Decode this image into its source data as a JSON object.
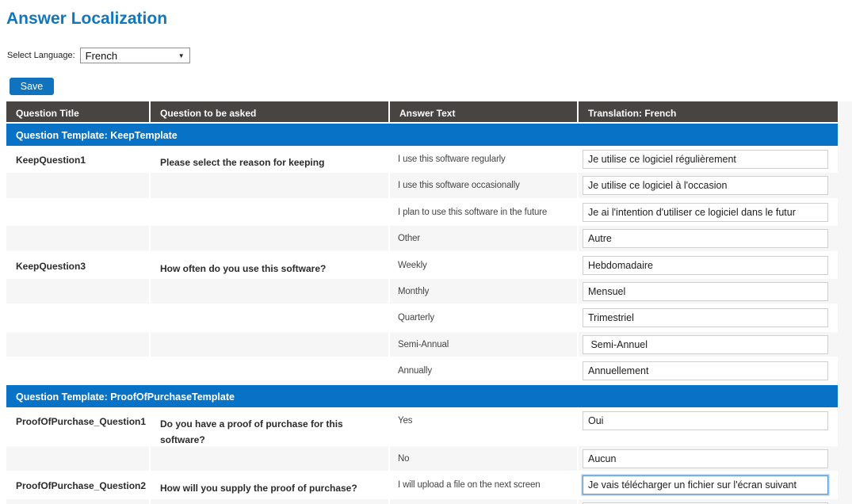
{
  "page": {
    "title": "Answer Localization"
  },
  "language": {
    "label": "Select Language:",
    "selected": "French"
  },
  "save_button": "Save",
  "icons": {
    "chevron_down": "▼"
  },
  "colors": {
    "title_blue": "#1276bd",
    "accent_blue": "#0873c6",
    "header_dark": "#474441",
    "save_blue": "#1173bd",
    "row_alt_gray": "#f6f6f6"
  },
  "table": {
    "headers": [
      "Question Title",
      "Question to be asked",
      "Answer Text",
      "Translation: French"
    ],
    "sections": [
      {
        "title": "Question Template: KeepTemplate",
        "rows": [
          {
            "question_title": "KeepQuestion1",
            "question": "Please select the reason for keeping",
            "answer": "I use this software regularly",
            "translation": "Je utilise ce logiciel régulièrement"
          },
          {
            "question_title": "",
            "question": "",
            "answer": "I use this software occasionally",
            "translation": "Je utilise ce logiciel à l'occasion"
          },
          {
            "question_title": "",
            "question": "",
            "answer": "I plan to use this software in the future",
            "translation": "Je ai l'intention d'utiliser ce logiciel dans le futur"
          },
          {
            "question_title": "",
            "question": "",
            "answer": "Other",
            "translation": "Autre"
          },
          {
            "question_title": "KeepQuestion3",
            "question": "How often do you use this software?",
            "answer": "Weekly",
            "translation": "Hebdomadaire"
          },
          {
            "question_title": "",
            "question": "",
            "answer": "Monthly",
            "translation": "Mensuel"
          },
          {
            "question_title": "",
            "question": "",
            "answer": "Quarterly",
            "translation": "Trimestriel"
          },
          {
            "question_title": "",
            "question": "",
            "answer": "Semi-Annual",
            "translation": " Semi-Annuel"
          },
          {
            "question_title": "",
            "question": "",
            "answer": "Annually",
            "translation": "Annuellement"
          }
        ]
      },
      {
        "title": "Question Template: ProofOfPurchaseTemplate",
        "rows": [
          {
            "question_title": "ProofOfPurchase_Question1",
            "question": "Do you have a proof of purchase for this software?",
            "answer": "Yes",
            "translation": "Oui"
          },
          {
            "question_title": "",
            "question": "",
            "answer": "No",
            "translation": "Aucun"
          },
          {
            "question_title": "ProofOfPurchase_Question2",
            "question": "How will you supply the proof of purchase?",
            "answer": "I will upload a file on the next screen",
            "translation": "Je vais télécharger un fichier sur l'écran suivant"
          },
          {
            "question_title": "",
            "question": "",
            "answer": "",
            "translation": ""
          }
        ]
      }
    ]
  }
}
